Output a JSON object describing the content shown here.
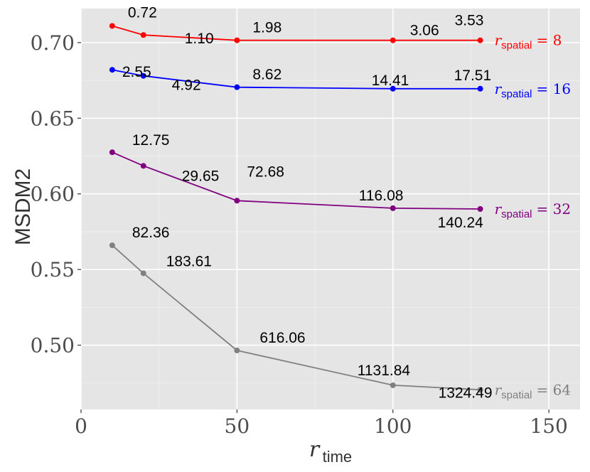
{
  "chart_data": {
    "type": "line",
    "xlabel": {
      "main": "r",
      "sub": "time"
    },
    "ylabel": "MSDM2",
    "xlim": [
      0,
      160
    ],
    "ylim": [
      0.4575,
      0.7225
    ],
    "xticks": [
      0,
      50,
      100,
      150
    ],
    "xtick_labels": [
      "0",
      "50",
      "100",
      "150"
    ],
    "yticks": [
      0.5,
      0.55,
      0.6,
      0.65,
      0.7
    ],
    "ytick_labels": [
      "0.50",
      "0.55",
      "0.60",
      "0.65",
      "0.70"
    ],
    "grid": true,
    "series": [
      {
        "label_main": "r",
        "label_sub": "spatial",
        "label_rest": "= 8",
        "color": "#ff0000",
        "x": [
          10,
          20,
          50,
          100,
          128
        ],
        "y": [
          0.711,
          0.705,
          0.7015,
          0.7015,
          0.7015
        ],
        "annotations": [
          "0.72",
          "1.10",
          "1.98",
          "3.06",
          "3.53"
        ]
      },
      {
        "label_main": "r",
        "label_sub": "spatial",
        "label_rest": "= 16",
        "color": "#0000ff",
        "x": [
          10,
          20,
          50,
          100,
          128
        ],
        "y": [
          0.682,
          0.678,
          0.6705,
          0.6695,
          0.6695
        ],
        "annotations": [
          "2.55",
          "4.92",
          "8.62",
          "14.41",
          "17.51"
        ]
      },
      {
        "label_main": "r",
        "label_sub": "spatial",
        "label_rest": "= 32",
        "color": "#800080",
        "x": [
          10,
          20,
          50,
          100,
          128
        ],
        "y": [
          0.6275,
          0.6185,
          0.5955,
          0.5905,
          0.59
        ],
        "annotations": [
          "12.75",
          "29.65",
          "72.68",
          "116.08",
          "140.24"
        ]
      },
      {
        "label_main": "r",
        "label_sub": "spatial",
        "label_rest": "= 64",
        "color": "#808080",
        "x": [
          10,
          20,
          50,
          100,
          128
        ],
        "y": [
          0.566,
          0.5475,
          0.4965,
          0.4735,
          0.4705
        ],
        "annotations": [
          "82.36",
          "183.61",
          "616.06",
          "1131.84",
          "1324.49"
        ]
      }
    ]
  }
}
